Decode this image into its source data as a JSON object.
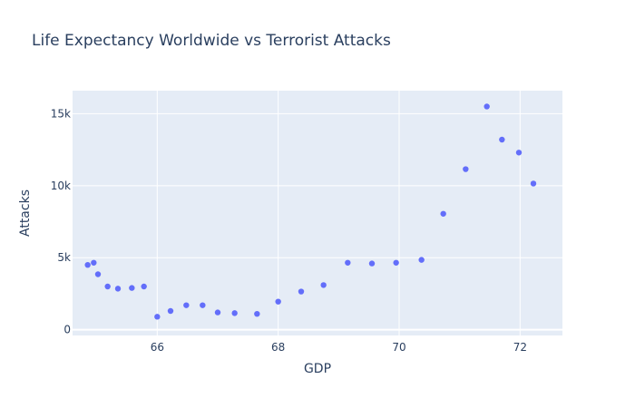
{
  "chart_data": {
    "type": "scatter",
    "title": "Life Expectancy Worldwide vs Terrorist Attacks",
    "xlabel": "GDP",
    "ylabel": "Attacks",
    "xlim": [
      64.6,
      72.7
    ],
    "ylim": [
      -400,
      16600
    ],
    "xticks": [
      66,
      68,
      70,
      72
    ],
    "xtick_labels": [
      "66",
      "68",
      "70",
      "72"
    ],
    "yticks": [
      0,
      5000,
      10000,
      15000
    ],
    "ytick_labels": [
      "0",
      "5k",
      "10k",
      "15k"
    ],
    "grid": true,
    "legend": false,
    "point_color": "#636efa",
    "plot_bgcolor": "#e5ecf6",
    "series": [
      {
        "x": [
          64.85,
          64.95,
          65.02,
          65.18,
          65.35,
          65.58,
          65.78,
          66.0,
          66.22,
          66.48,
          66.75,
          67.0,
          67.28,
          67.65,
          68.0,
          68.38,
          68.75,
          69.15,
          69.55,
          69.95,
          70.37,
          70.73,
          71.1,
          71.45,
          71.7,
          71.98,
          72.22
        ],
        "y": [
          4500,
          4650,
          3850,
          3000,
          2850,
          2900,
          3000,
          900,
          1300,
          1700,
          1700,
          1200,
          1150,
          1100,
          1950,
          2650,
          3100,
          4650,
          4600,
          4650,
          4850,
          8050,
          11150,
          15500,
          13200,
          12300,
          10150
        ]
      }
    ]
  }
}
